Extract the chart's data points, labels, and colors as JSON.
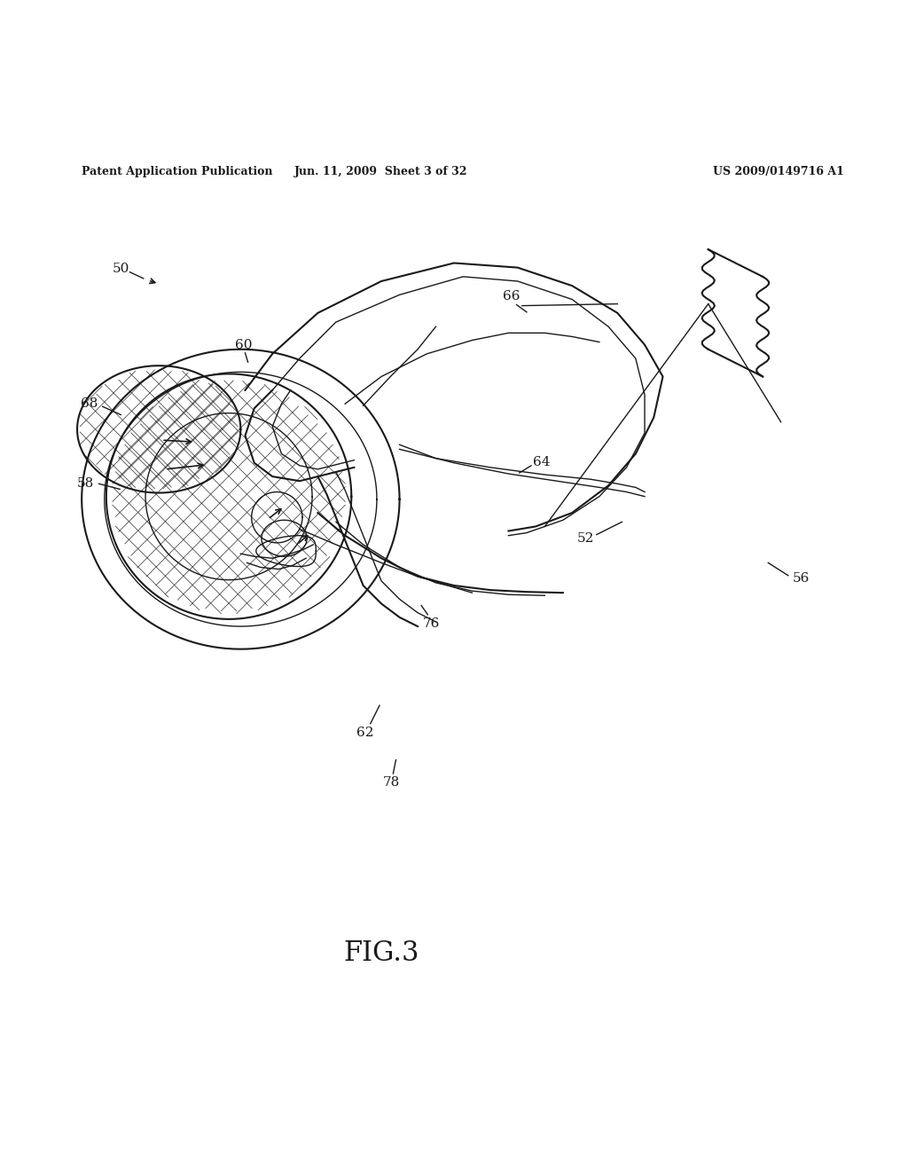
{
  "background_color": "#ffffff",
  "line_color": "#1a1a1a",
  "header_left": "Patent Application Publication",
  "header_center": "Jun. 11, 2009  Sheet 3 of 32",
  "header_right": "US 2009/0149716 A1",
  "figure_label": "FIG.3"
}
